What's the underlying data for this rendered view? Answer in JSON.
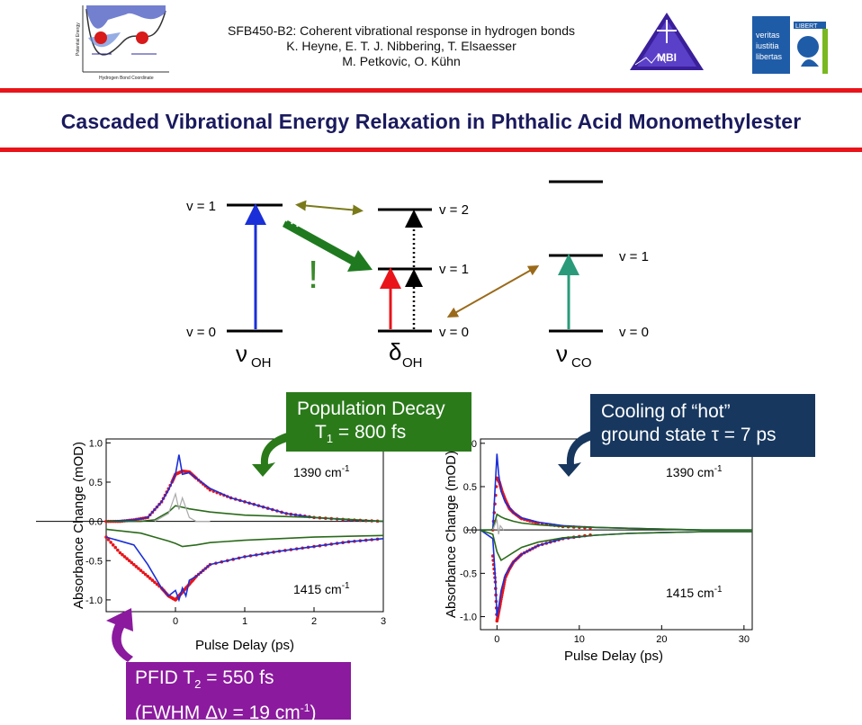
{
  "header": {
    "line1": "SFB450-B2: Coherent vibrational response in hydrogen bonds",
    "line2": "K. Heyne, E. T. J. Nibbering, T. Elsaesser",
    "line3": "M. Petkovic, O. Kühn",
    "logo_left_axis_y": "Potential Energy",
    "logo_left_axis_x": "Hydrogen Bond Coordinate",
    "logo_mid_text": "MBI",
    "logo_right_text": [
      "veritas",
      "iustitia",
      "libertas"
    ],
    "logo_right_banner": "LIBERT"
  },
  "title": "Cascaded Vibrational Energy Relaxation in Phthalic Acid Monomethylester",
  "levels": {
    "oh_v1": "v = 1",
    "oh_v0": "v = 0",
    "d_v2": "v = 2",
    "d_v1": "v = 1",
    "d_v0": "v = 0",
    "co_v1": "v = 1",
    "co_v0": "v = 0",
    "nu_sym": "ν",
    "delta_sym": "δ",
    "oh_sub": "OH",
    "co_sub": "CO",
    "exclaim": "!"
  },
  "boxes": {
    "pop_line1": "Population Decay",
    "pop_T": "T",
    "pop_T_sub": "1",
    "pop_val": " = 800 fs",
    "cool_line1": "Cooling of “hot”",
    "cool_line2": "ground state  τ = 7 ps",
    "pfid_a": "PFID   T",
    "pfid_sub": "2",
    "pfid_b": " = 550 fs",
    "fwhm_a": "(FWHM Δν = 19 cm",
    "fwhm_sup": "-1",
    "fwhm_b": ")"
  },
  "colors": {
    "red_line": "#e8141a",
    "title": "#1a1a5e",
    "green_box": "#2a7a1a",
    "navy_box": "#17375e",
    "purple_box": "#8b1a9e",
    "blue": "#1a2fd8",
    "red": "#e8141a",
    "dark_green": "#2a6a1a",
    "olive": "#7a7a1a",
    "brown": "#9a6a1a",
    "teal": "#2a9a7a",
    "green_arrow": "#1f7a1f"
  },
  "chart_data": [
    {
      "type": "line",
      "xlabel": "Pulse Delay (ps)",
      "ylabel": "Absorbance Change (mOD)",
      "xlim": [
        -1.0,
        3.0
      ],
      "ylim": [
        -1.15,
        1.05
      ],
      "xticks": [
        "0",
        "1",
        "2",
        "3"
      ],
      "yticks": [
        "1.0",
        "0.5",
        "0.0",
        "-0.5",
        "-1.0"
      ],
      "annotations": [
        {
          "base": "1390 cm",
          "sup": "-1"
        },
        {
          "base": "1415 cm",
          "sup": "-1"
        }
      ],
      "series": [
        {
          "color": "#e8141a",
          "style": "dots",
          "x": [
            -1.0,
            -0.8,
            -0.6,
            -0.4,
            -0.2,
            -0.05,
            0.0,
            0.1,
            0.2,
            0.3,
            0.5,
            0.8,
            1.2,
            1.6,
            2.0,
            2.5,
            3.0
          ],
          "y": [
            0.0,
            0.0,
            0.02,
            0.05,
            0.25,
            0.5,
            0.6,
            0.64,
            0.63,
            0.55,
            0.4,
            0.3,
            0.2,
            0.1,
            0.05,
            0.02,
            0.0
          ]
        },
        {
          "color": "#1a2fd8",
          "style": "line",
          "x": [
            -1.0,
            -0.6,
            -0.4,
            -0.2,
            -0.1,
            0.0,
            0.05,
            0.1,
            0.2,
            0.3,
            0.5,
            0.8,
            1.2,
            1.6,
            2.0,
            2.5,
            3.0
          ],
          "y": [
            0.0,
            0.02,
            0.05,
            0.25,
            0.4,
            0.6,
            0.85,
            0.6,
            0.62,
            0.55,
            0.42,
            0.3,
            0.2,
            0.1,
            0.05,
            0.02,
            0.0
          ]
        },
        {
          "color": "#2a6a1a",
          "style": "line",
          "x": [
            -1.0,
            -0.5,
            -0.3,
            -0.1,
            0.0,
            0.1,
            0.2,
            0.5,
            1.0,
            2.0,
            3.0
          ],
          "y": [
            0.0,
            0.0,
            0.02,
            0.12,
            0.2,
            0.18,
            0.16,
            0.12,
            0.08,
            0.05,
            0.0
          ]
        },
        {
          "color": "#aaaaaa",
          "style": "line",
          "x": [
            -0.3,
            -0.1,
            0.0,
            0.05,
            0.1,
            0.2,
            0.3,
            0.5
          ],
          "y": [
            0.0,
            0.1,
            0.35,
            0.15,
            0.3,
            0.05,
            0.0,
            0.0
          ]
        },
        {
          "color": "#e8141a",
          "style": "dots",
          "x": [
            -1.0,
            -0.8,
            -0.6,
            -0.4,
            -0.2,
            -0.1,
            0.0,
            0.05,
            0.1,
            0.2,
            0.3,
            0.5,
            1.0,
            1.5,
            2.0,
            2.5,
            3.0
          ],
          "y": [
            -0.2,
            -0.4,
            -0.55,
            -0.7,
            -0.85,
            -0.95,
            -1.0,
            -0.95,
            -0.9,
            -0.8,
            -0.7,
            -0.55,
            -0.45,
            -0.38,
            -0.32,
            -0.26,
            -0.22
          ]
        },
        {
          "color": "#1a2fd8",
          "style": "line",
          "x": [
            -1.0,
            -0.6,
            -0.4,
            -0.2,
            -0.1,
            0.0,
            0.05,
            0.1,
            0.15,
            0.2,
            0.3,
            0.5,
            1.0,
            1.5,
            2.0,
            2.5,
            3.0
          ],
          "y": [
            -0.2,
            -0.3,
            -0.55,
            -0.85,
            -0.95,
            -0.88,
            -1.0,
            -0.85,
            -0.95,
            -0.75,
            -0.7,
            -0.55,
            -0.45,
            -0.38,
            -0.32,
            -0.26,
            -0.22
          ]
        },
        {
          "color": "#2a6a1a",
          "style": "line",
          "x": [
            -1.0,
            -0.5,
            -0.3,
            -0.1,
            0.0,
            0.1,
            0.3,
            0.5,
            1.0,
            1.5,
            2.0,
            3.0
          ],
          "y": [
            -0.1,
            -0.15,
            -0.2,
            -0.25,
            -0.28,
            -0.32,
            -0.3,
            -0.27,
            -0.24,
            -0.22,
            -0.2,
            -0.18
          ]
        }
      ]
    },
    {
      "type": "line",
      "xlabel": "Pulse Delay (ps)",
      "ylabel": "Absorbance Change (mOD)",
      "xlim": [
        -2,
        31
      ],
      "ylim": [
        -1.15,
        1.05
      ],
      "xticks": [
        "0",
        "10",
        "20",
        "30"
      ],
      "yticks": [
        "1.0",
        "0.5",
        "0.0",
        "-0.5",
        "-1.0"
      ],
      "annotations": [
        {
          "base": "1390 cm",
          "sup": "-1"
        },
        {
          "base": "1415 cm",
          "sup": "-1"
        }
      ],
      "series": [
        {
          "color": "#e8141a",
          "style": "dots",
          "x": [
            -0.5,
            0.0,
            0.3,
            0.6,
            1.0,
            1.5,
            2.0,
            3.0,
            5.0,
            8.0,
            12.0
          ],
          "y": [
            0.0,
            0.6,
            0.55,
            0.45,
            0.35,
            0.25,
            0.2,
            0.13,
            0.08,
            0.04,
            0.02
          ]
        },
        {
          "color": "#1a2fd8",
          "style": "line",
          "x": [
            -2.0,
            -0.5,
            0.0,
            0.2,
            0.5,
            1.0,
            2.0,
            3.0,
            5.0,
            8.0,
            12.0,
            16.0,
            20.0,
            25.0,
            31.0
          ],
          "y": [
            0.0,
            0.0,
            0.88,
            0.65,
            0.45,
            0.32,
            0.2,
            0.14,
            0.09,
            0.05,
            0.03,
            0.02,
            0.01,
            0.0,
            0.0
          ]
        },
        {
          "color": "#2a6a1a",
          "style": "line",
          "x": [
            -2.0,
            -0.5,
            0.0,
            0.5,
            1.0,
            2.0,
            3.0,
            5.0,
            8.0,
            12.0,
            16.0,
            20.0,
            25.0,
            31.0
          ],
          "y": [
            0.0,
            0.0,
            0.18,
            0.15,
            0.13,
            0.1,
            0.08,
            0.06,
            0.04,
            0.03,
            0.02,
            0.01,
            0.0,
            0.0
          ]
        },
        {
          "color": "#aaaaaa",
          "style": "line",
          "x": [
            -0.5,
            0.0,
            0.2,
            0.4,
            0.8
          ],
          "y": [
            0.0,
            0.12,
            -0.05,
            0.05,
            0.0
          ]
        },
        {
          "color": "#e8141a",
          "style": "dots",
          "x": [
            -0.5,
            -0.2,
            0.0,
            0.2,
            0.4,
            0.7,
            1.0,
            1.5,
            2.0,
            3.0,
            5.0,
            8.0,
            12.0
          ],
          "y": [
            -0.3,
            -0.6,
            -1.05,
            -0.95,
            -0.85,
            -0.7,
            -0.55,
            -0.45,
            -0.37,
            -0.28,
            -0.18,
            -0.1,
            -0.05
          ]
        },
        {
          "color": "#1a2fd8",
          "style": "line",
          "x": [
            -2.0,
            -0.5,
            -0.2,
            0.0,
            0.2,
            0.5,
            1.0,
            2.0,
            3.0,
            5.0,
            8.0,
            12.0,
            16.0,
            20.0,
            25.0,
            31.0
          ],
          "y": [
            0.0,
            -0.1,
            -0.55,
            -1.0,
            -0.9,
            -0.7,
            -0.52,
            -0.37,
            -0.28,
            -0.18,
            -0.1,
            -0.06,
            -0.04,
            -0.03,
            -0.02,
            -0.02
          ]
        },
        {
          "color": "#2a6a1a",
          "style": "line",
          "x": [
            -2.0,
            -0.5,
            0.0,
            0.5,
            1.0,
            2.0,
            3.0,
            5.0,
            8.0,
            12.0,
            16.0,
            20.0,
            25.0,
            31.0
          ],
          "y": [
            0.0,
            -0.05,
            -0.25,
            -0.35,
            -0.32,
            -0.26,
            -0.2,
            -0.14,
            -0.09,
            -0.06,
            -0.04,
            -0.03,
            -0.02,
            -0.02
          ]
        }
      ]
    }
  ]
}
